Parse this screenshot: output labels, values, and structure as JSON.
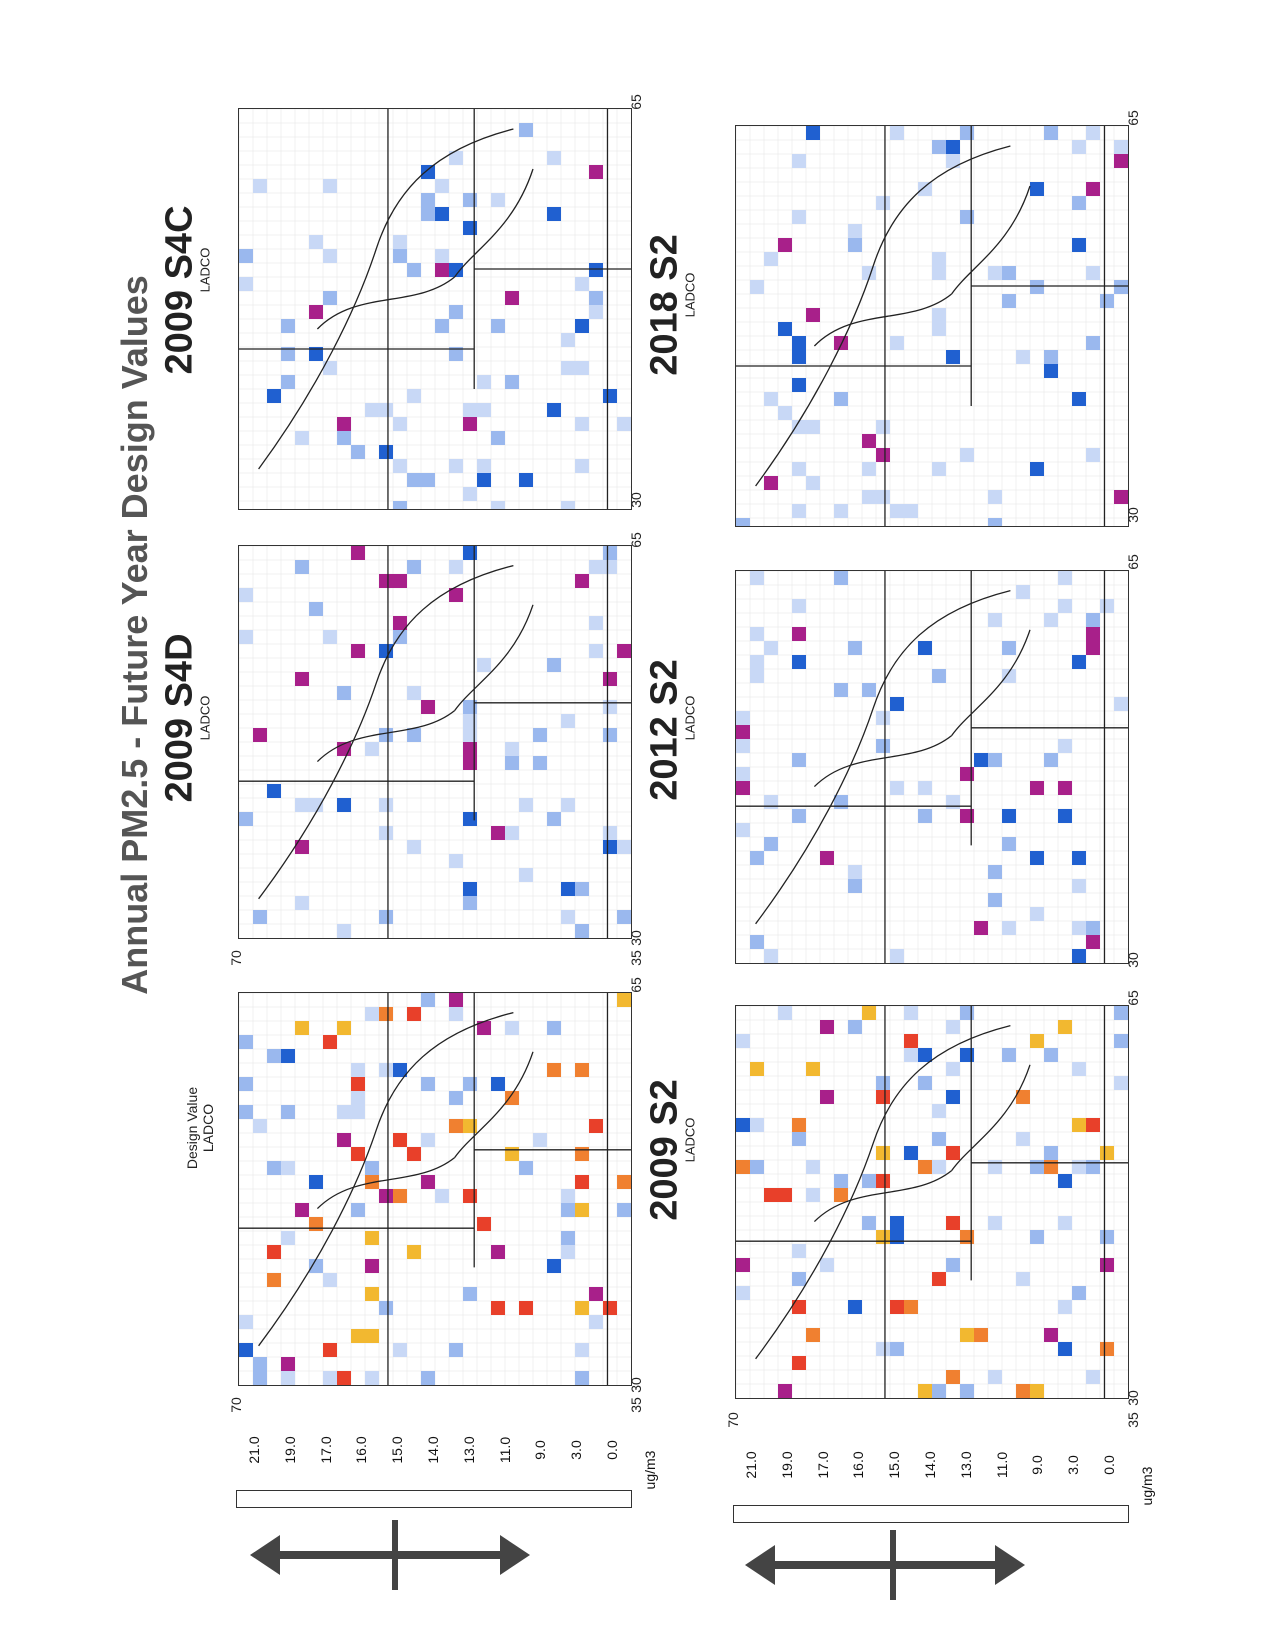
{
  "title": "Annual PM2.5 - Future Year Design Values",
  "legend": {
    "units": "ug/m3",
    "ticks": [
      "21.0",
      "19.0",
      "17.0",
      "16.0",
      "15.0",
      "14.0",
      "13.0",
      "11.0",
      "9.0",
      "3.0",
      "0.0"
    ],
    "colors": [
      "#e0203a",
      "#e8402a",
      "#f08030",
      "#f2b830",
      "#f7d020",
      "#a8208a",
      "#2060d0",
      "#9ab8ee",
      "#c8d8f6",
      "#e4e4e4",
      "#ffffff"
    ],
    "arrow_color": "#444444"
  },
  "panels": [
    {
      "id": "top-left",
      "title": "",
      "sub_label": "Design Value",
      "sub_label2": "LADCO"
    },
    {
      "id": "top-middle",
      "title": "2009 S4D",
      "sub_label": "LADCO"
    },
    {
      "id": "top-right",
      "title": "2009 S4C",
      "sub_label": "LADCO"
    },
    {
      "id": "bottom-left",
      "title": "2009 S2",
      "sub_label": "LADCO"
    },
    {
      "id": "bottom-middle",
      "title": "2012 S2",
      "sub_label": "LADCO"
    },
    {
      "id": "bottom-right",
      "title": "2018 S2",
      "sub_label": "LADCO"
    }
  ],
  "axis": {
    "x_min": "30",
    "x_max": "65",
    "y_min": "35",
    "y_max": "70"
  }
}
